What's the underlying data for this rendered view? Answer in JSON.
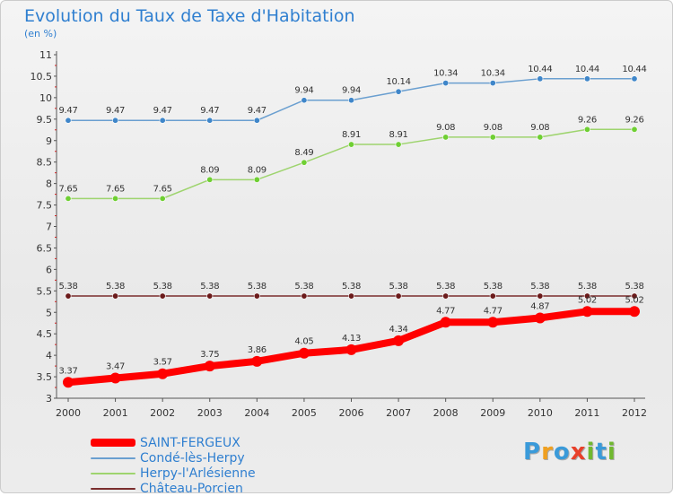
{
  "title": "Evolution du Taux de Taxe d'Habitation",
  "subtitle": "(en %)",
  "logo": {
    "text": "Proxiti",
    "letters": [
      "P",
      "r",
      "o",
      "x",
      "i",
      "t",
      "i"
    ],
    "colors": [
      "#3a9ad9",
      "#f0a020",
      "#3a9ad9",
      "#e8402a",
      "#70b830",
      "#3a9ad9",
      "#70b830"
    ]
  },
  "chart_data": {
    "type": "line",
    "x": [
      2000,
      2001,
      2002,
      2003,
      2004,
      2005,
      2006,
      2007,
      2008,
      2009,
      2010,
      2011,
      2012
    ],
    "ylim": [
      3,
      11
    ],
    "yticks": [
      3,
      3.5,
      4,
      4.5,
      5,
      5.5,
      6,
      6.5,
      7,
      7.5,
      8,
      8.5,
      9,
      9.5,
      10,
      10.5,
      11
    ],
    "ytick_labels": [
      "3",
      "3.5",
      "4",
      "4.5",
      "5",
      "5.5",
      "6",
      "6.5",
      "7",
      "7.5",
      "8",
      "8.5",
      "9",
      "9.5",
      "10",
      "10.5",
      "11"
    ],
    "grid": false,
    "legend_position": "bottom-left",
    "series": [
      {
        "name": "SAINT-FERGEUX",
        "color": "#ff0000",
        "marker": "#ff0000",
        "width": 8,
        "values": [
          3.37,
          3.47,
          3.57,
          3.75,
          3.86,
          4.05,
          4.13,
          4.34,
          4.77,
          4.77,
          4.87,
          5.02,
          5.02
        ],
        "labels": [
          "3.37",
          "3.47",
          "3.57",
          "3.75",
          "3.86",
          "4.05",
          "4.13",
          "4.34",
          "4.77",
          "4.77",
          "4.87",
          "5.02",
          "5.02"
        ]
      },
      {
        "name": "Condé-lès-Herpy",
        "color": "#6a9fd0",
        "marker": "#3f86c9",
        "width": 1.5,
        "values": [
          9.47,
          9.47,
          9.47,
          9.47,
          9.47,
          9.94,
          9.94,
          10.14,
          10.34,
          10.34,
          10.44,
          10.44,
          10.44
        ],
        "labels": [
          "9.47",
          "9.47",
          "9.47",
          "9.47",
          "9.47",
          "9.94",
          "9.94",
          "10.14",
          "10.34",
          "10.34",
          "10.44",
          "10.44",
          "10.44"
        ]
      },
      {
        "name": "Herpy-l'Arlésienne",
        "color": "#9ed46e",
        "marker": "#6fcf33",
        "width": 1.5,
        "values": [
          7.65,
          7.65,
          7.65,
          8.09,
          8.09,
          8.49,
          8.91,
          8.91,
          9.08,
          9.08,
          9.08,
          9.26,
          9.26
        ],
        "labels": [
          "7.65",
          "7.65",
          "7.65",
          "8.09",
          "8.09",
          "8.49",
          "8.91",
          "8.91",
          "9.08",
          "9.08",
          "9.08",
          "9.26",
          "9.26"
        ]
      },
      {
        "name": "Château-Porcien",
        "color": "#7a2e2e",
        "marker": "#6b1a1a",
        "width": 1.5,
        "values": [
          5.38,
          5.38,
          5.38,
          5.38,
          5.38,
          5.38,
          5.38,
          5.38,
          5.38,
          5.38,
          5.38,
          5.38,
          5.38
        ],
        "labels": [
          "5.38",
          "5.38",
          "5.38",
          "5.38",
          "5.38",
          "5.38",
          "5.38",
          "5.38",
          "5.38",
          "5.38",
          "5.38",
          "5.38",
          "5.38"
        ]
      }
    ]
  }
}
